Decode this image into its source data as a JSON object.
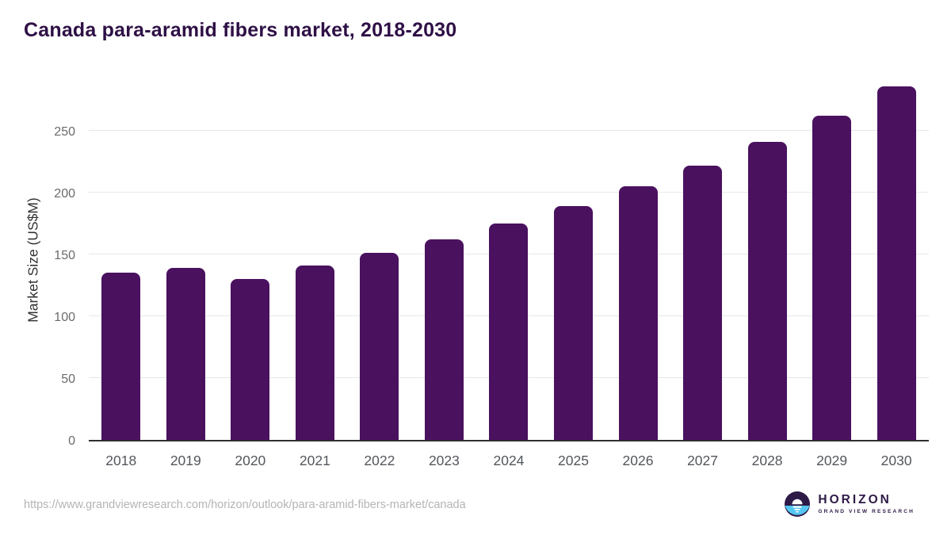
{
  "page": {
    "title": "Canada para-aramid fibers market, 2018-2030",
    "source_url": "https://www.grandviewresearch.com/horizon/outlook/para-aramid-fibers-market/canada"
  },
  "logo": {
    "brand": "HORIZON",
    "tagline": "GRAND VIEW RESEARCH",
    "purple": "#2e1a47",
    "blue": "#55c6f2"
  },
  "chart_data": {
    "type": "bar",
    "title": "Canada para-aramid fibers market, 2018-2030",
    "categories": [
      "2018",
      "2019",
      "2020",
      "2021",
      "2022",
      "2023",
      "2024",
      "2025",
      "2026",
      "2027",
      "2028",
      "2029",
      "2030"
    ],
    "values": [
      135,
      139,
      130,
      141,
      151,
      162,
      175,
      189,
      205,
      222,
      241,
      262,
      286
    ],
    "xlabel": "",
    "ylabel": "Market Size (US$M)",
    "yticks": [
      0,
      50,
      100,
      150,
      200,
      250
    ],
    "ylim": [
      0,
      293
    ],
    "bar_color": "#4a115f",
    "grid": "horizontal-only",
    "legend_position": "none",
    "background_color": "#ffffff",
    "title_color": "#2e1045"
  }
}
